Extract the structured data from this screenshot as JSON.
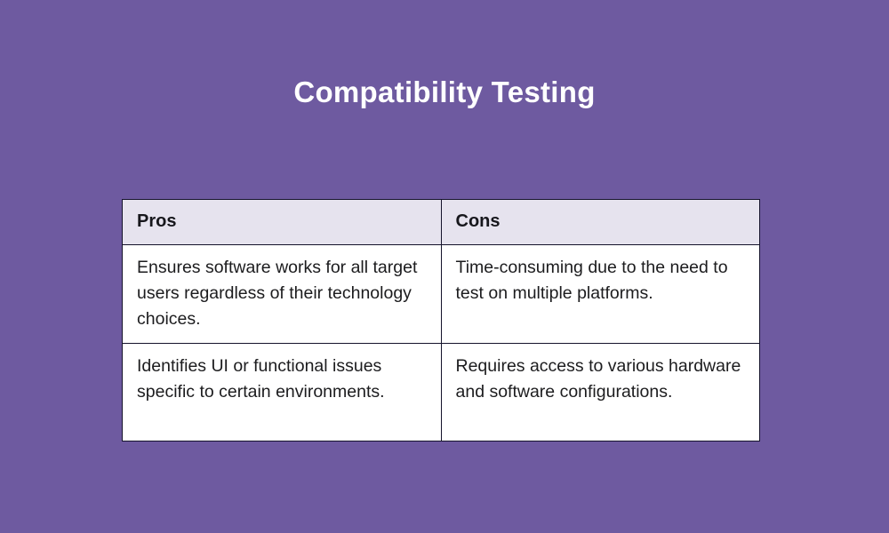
{
  "page": {
    "title": "Compatibility Testing",
    "background_color": "#6e5aa0",
    "title_color": "#ffffff"
  },
  "table": {
    "header_bg": "#e6e3ee",
    "cell_bg": "#ffffff",
    "border_color": "#15132b",
    "text_color": "#1c1c1e",
    "headers": [
      "Pros",
      "Cons"
    ],
    "rows": [
      [
        "Ensures software works for all target users regardless of their technology choices.",
        "Time-consuming due to the need to test on multiple platforms."
      ],
      [
        "Identifies UI or functional issues specific to certain environments.",
        "Requires access to various hardware and software configurations."
      ]
    ]
  },
  "chart_data": {
    "type": "table",
    "title": "Compatibility Testing",
    "columns": [
      "Pros",
      "Cons"
    ],
    "rows": [
      [
        "Ensures software works for all target users regardless of their technology choices.",
        "Time-consuming due to the need to test on multiple platforms."
      ],
      [
        "Identifies UI or functional issues specific to certain environments.",
        "Requires access to various hardware and software configurations."
      ]
    ]
  }
}
